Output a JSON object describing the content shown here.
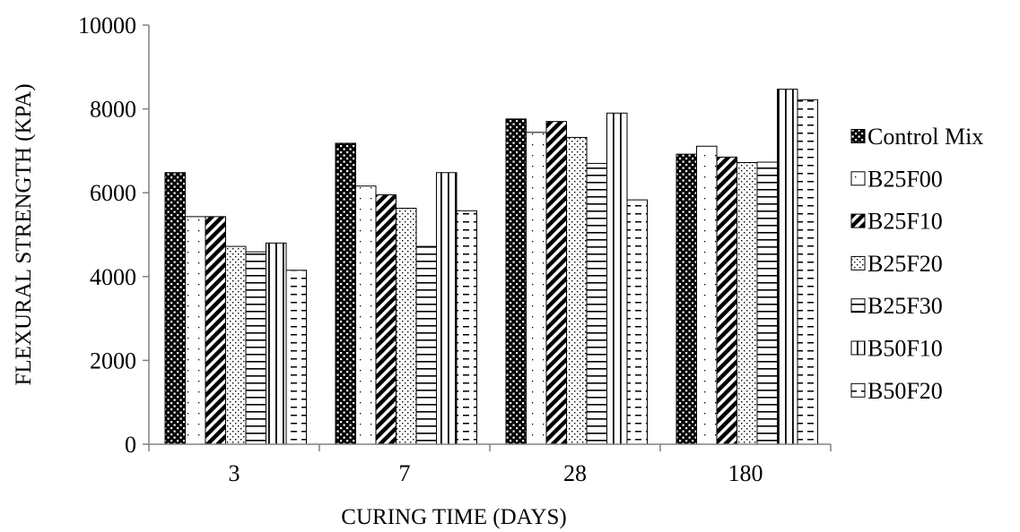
{
  "chart_data": {
    "type": "bar",
    "title": "",
    "xlabel": "CURING TIME (DAYS)",
    "ylabel": "FLEXURAL STRENGTH (KPA)",
    "ylim": [
      0,
      10000
    ],
    "yticks": [
      "0",
      "2000",
      "4000",
      "6000",
      "8000",
      "10000"
    ],
    "categories": [
      "3",
      "7",
      "28",
      "180"
    ],
    "grid": false,
    "legend_position": "right",
    "series": [
      {
        "name": "Control Mix",
        "pattern": "dots-dense",
        "values": [
          6480,
          7180,
          7760,
          6920
        ]
      },
      {
        "name": "B25F00",
        "pattern": "dots-sparse",
        "values": [
          5430,
          6160,
          7440,
          7110
        ]
      },
      {
        "name": "B25F10",
        "pattern": "diagonal-dense",
        "values": [
          5430,
          5950,
          7700,
          6850
        ]
      },
      {
        "name": "B25F20",
        "pattern": "dots-medium",
        "values": [
          4720,
          5630,
          7320,
          6720
        ]
      },
      {
        "name": "B25F30",
        "pattern": "horizontal",
        "values": [
          4590,
          4720,
          6700,
          6730
        ]
      },
      {
        "name": "B50F10",
        "pattern": "vertical",
        "values": [
          4800,
          6480,
          7900,
          8470
        ]
      },
      {
        "name": "B50F20",
        "pattern": "dashed-horizontal",
        "values": [
          4150,
          5570,
          5830,
          8220
        ]
      }
    ]
  }
}
